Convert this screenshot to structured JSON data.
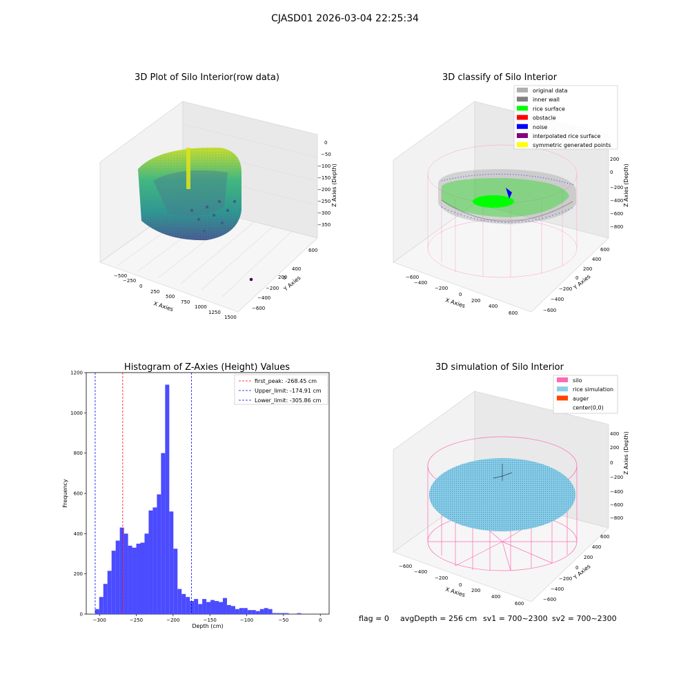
{
  "figure": {
    "suptitle": "CJASD01 2026-03-04 22:25:34",
    "footer": {
      "flag": "flag = 0",
      "avg": "avgDepth = 256 cm",
      "sv1": "sv1 = 700~2300",
      "sv2": "sv2 = 700~2300"
    }
  },
  "panels": {
    "raw": {
      "title": "3D Plot of Silo Interior(row data)",
      "xlabel": "X Axies",
      "ylabel": "Y Axies",
      "zlabel": "Z Axies (Depth)",
      "xticks": [
        "−500",
        "−250",
        "0",
        "250",
        "500",
        "750",
        "1000",
        "1250",
        "1500"
      ],
      "yticks": [
        "600",
        "400",
        "200",
        "0",
        "−200",
        "−400",
        "−600"
      ],
      "zticks": [
        "0",
        "−50",
        "−100",
        "−150",
        "−200",
        "−250",
        "−300",
        "−350"
      ]
    },
    "classify": {
      "title": "3D classify of Silo Interior",
      "xlabel": "X Axies",
      "ylabel": "Y Axies",
      "zlabel": "Z Axies (Depth)",
      "xticks": [
        "−600",
        "−400",
        "−200",
        "0",
        "200",
        "400",
        "600"
      ],
      "yticks": [
        "600",
        "400",
        "200",
        "0",
        "−200",
        "−400",
        "−600"
      ],
      "zticks": [
        "200",
        "0",
        "−200",
        "−400",
        "−600",
        "−800"
      ],
      "legend": [
        {
          "label": "original data",
          "color": "#b0b0b0"
        },
        {
          "label": "inner wall",
          "color": "#808080"
        },
        {
          "label": "rice surface",
          "color": "#00ff00"
        },
        {
          "label": "obstacle",
          "color": "#ff0000"
        },
        {
          "label": "noise",
          "color": "#0000ff"
        },
        {
          "label": "interpolated rice surface",
          "color": "#800080"
        },
        {
          "label": "symmetric generated points",
          "color": "#ffff00"
        }
      ]
    },
    "simulation": {
      "title": "3D simulation of Silo Interior",
      "xlabel": "X Axies",
      "ylabel": "Y Axies",
      "zlabel": "Z Axies (Depth)",
      "xticks": [
        "−600",
        "−400",
        "−200",
        "0",
        "200",
        "400",
        "600"
      ],
      "yticks": [
        "600",
        "400",
        "200",
        "0",
        "−200",
        "−400",
        "−600"
      ],
      "zticks": [
        "400",
        "200",
        "0",
        "−200",
        "−400",
        "−600",
        "−800"
      ],
      "legend": [
        {
          "label": "silo",
          "color": "#ff69b4"
        },
        {
          "label": "rice simulation",
          "color": "#87ceeb"
        },
        {
          "label": "auger",
          "color": "#ff4500"
        },
        {
          "label": "center(0,0)",
          "color": "#ffffff"
        }
      ]
    }
  },
  "chart_data": {
    "type": "bar",
    "title": "Histogram of Z-Axies (Height) Values",
    "xlabel": "Depth (cm)",
    "ylabel": "Frequency",
    "xlim": [
      -318,
      12
    ],
    "ylim": [
      0,
      1200
    ],
    "xticks": [
      -300,
      -250,
      -200,
      -150,
      -100,
      -50,
      0
    ],
    "yticks": [
      0,
      200,
      400,
      600,
      800,
      1000,
      1200
    ],
    "bin_width": 5.6,
    "bin_start": -306,
    "counts": [
      25,
      85,
      150,
      215,
      315,
      365,
      430,
      400,
      340,
      330,
      350,
      355,
      400,
      515,
      530,
      595,
      800,
      1140,
      510,
      325,
      125,
      100,
      85,
      65,
      75,
      50,
      75,
      60,
      70,
      65,
      60,
      80,
      45,
      40,
      25,
      30,
      30,
      20,
      20,
      15,
      25,
      30,
      25,
      5,
      5,
      5,
      5,
      0,
      0,
      5
    ],
    "bar_color": "#4b4bff",
    "vlines": [
      {
        "x": -268.45,
        "color": "#ff0000",
        "label": "first_peak: -268.45 cm"
      },
      {
        "x": -174.91,
        "color": "#0000ff",
        "label": "Upper_limit: -174.91 cm"
      },
      {
        "x": -305.86,
        "color": "#0000ff",
        "label": "Lower_limit: -305.86 cm"
      }
    ]
  }
}
